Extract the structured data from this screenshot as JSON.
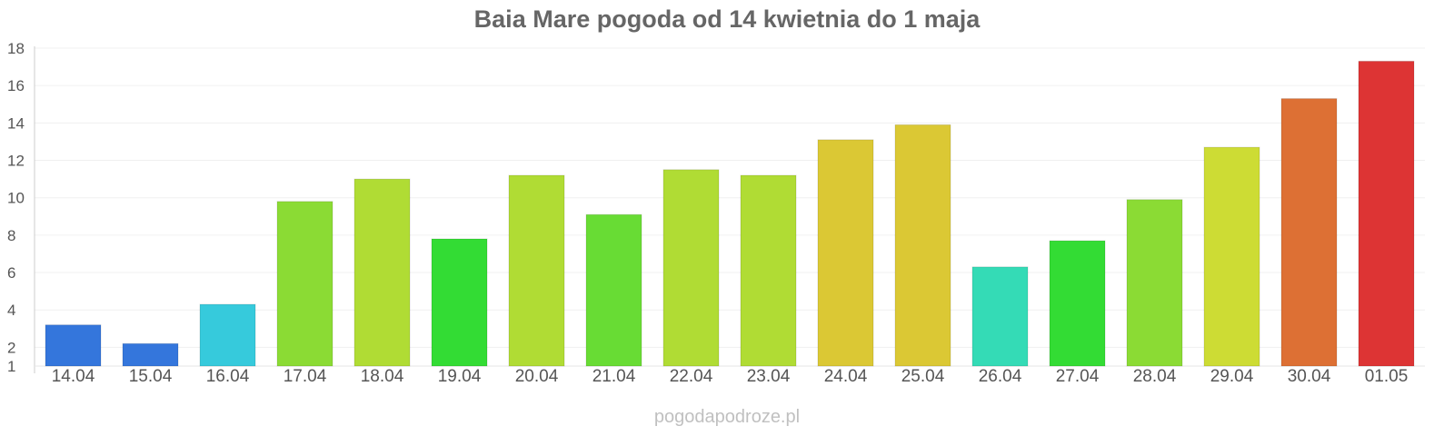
{
  "chart_data": {
    "type": "bar",
    "title": "Baia Mare pogoda od 14 kwietnia do 1 maja",
    "xlabel": "",
    "ylabel": "",
    "categories": [
      "14.04",
      "15.04",
      "16.04",
      "17.04",
      "18.04",
      "19.04",
      "20.04",
      "21.04",
      "22.04",
      "23.04",
      "24.04",
      "25.04",
      "26.04",
      "27.04",
      "28.04",
      "29.04",
      "30.04",
      "01.05"
    ],
    "values": [
      3.2,
      2.2,
      4.3,
      9.8,
      11.0,
      7.8,
      11.2,
      9.1,
      11.5,
      11.2,
      13.1,
      13.9,
      6.3,
      7.7,
      9.9,
      12.7,
      15.3,
      17.3
    ],
    "colors": [
      "#3476dc",
      "#3476dc",
      "#36cadc",
      "#8bdb34",
      "#b0dc34",
      "#33dc34",
      "#b0dc34",
      "#68dc34",
      "#b0dc34",
      "#b0dc34",
      "#dbc834",
      "#dbc834",
      "#34dbb6",
      "#33dc34",
      "#8bdb34",
      "#cddc34",
      "#dd7034",
      "#dd3434"
    ],
    "ylim": [
      1,
      18
    ],
    "yticks": [
      1,
      2,
      4,
      6,
      8,
      10,
      12,
      14,
      16,
      18
    ],
    "grid": true,
    "legend": "none"
  },
  "watermark": "pogodapodroze.pl"
}
